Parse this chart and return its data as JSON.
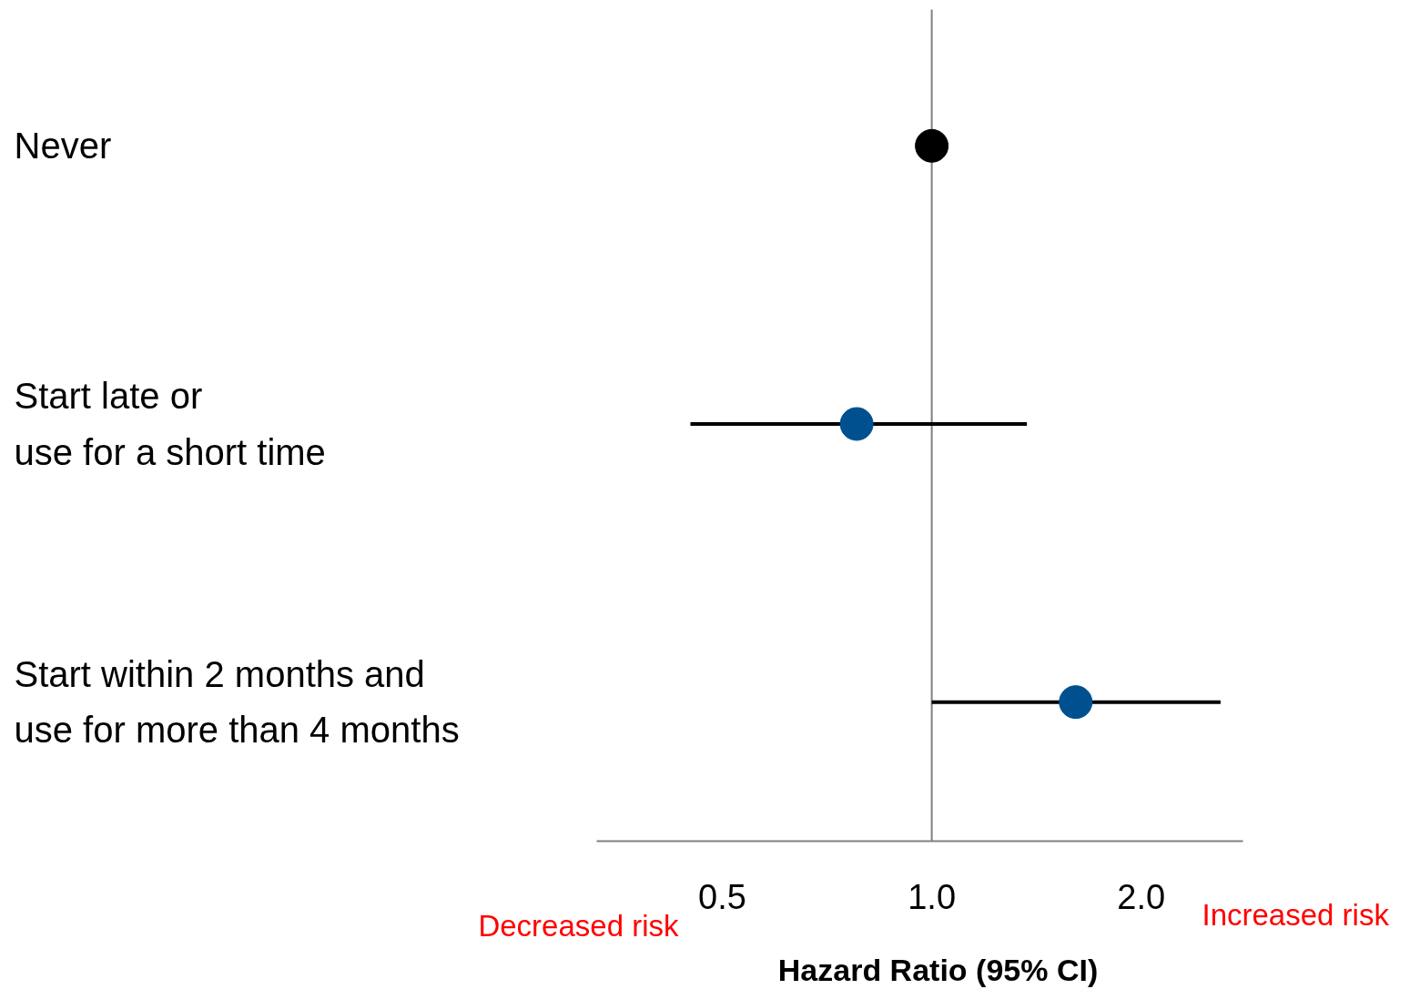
{
  "chart_data": {
    "type": "scatter",
    "orientation": "horizontal",
    "log": "x",
    "xlabel": "Hazard Ratio (95% CI)",
    "categories": [
      "Never",
      "Start late or\nuse for a short time",
      "Start within 2 months and\nuse for more than 4 months"
    ],
    "values": [
      1.0,
      0.78,
      1.61
    ],
    "errors": [
      null,
      [
        0.45,
        1.37
      ],
      [
        1.0,
        2.6
      ]
    ],
    "colors": [
      "#000000",
      "#00508f",
      "#00508f"
    ],
    "marker": "circle",
    "xlim": [
      0.33,
      2.8
    ],
    "xticks": [
      0.5,
      {
        "value": 1.0,
        "label": "1.0"
      },
      {
        "value": 2.0,
        "label": "2.0"
      }
    ],
    "ref_lines": [
      {
        "axis": "x",
        "value": 1.0,
        "color": "#808080"
      }
    ],
    "annotations": [
      "Decreased risk",
      "Increased risk"
    ],
    "grid": false
  }
}
